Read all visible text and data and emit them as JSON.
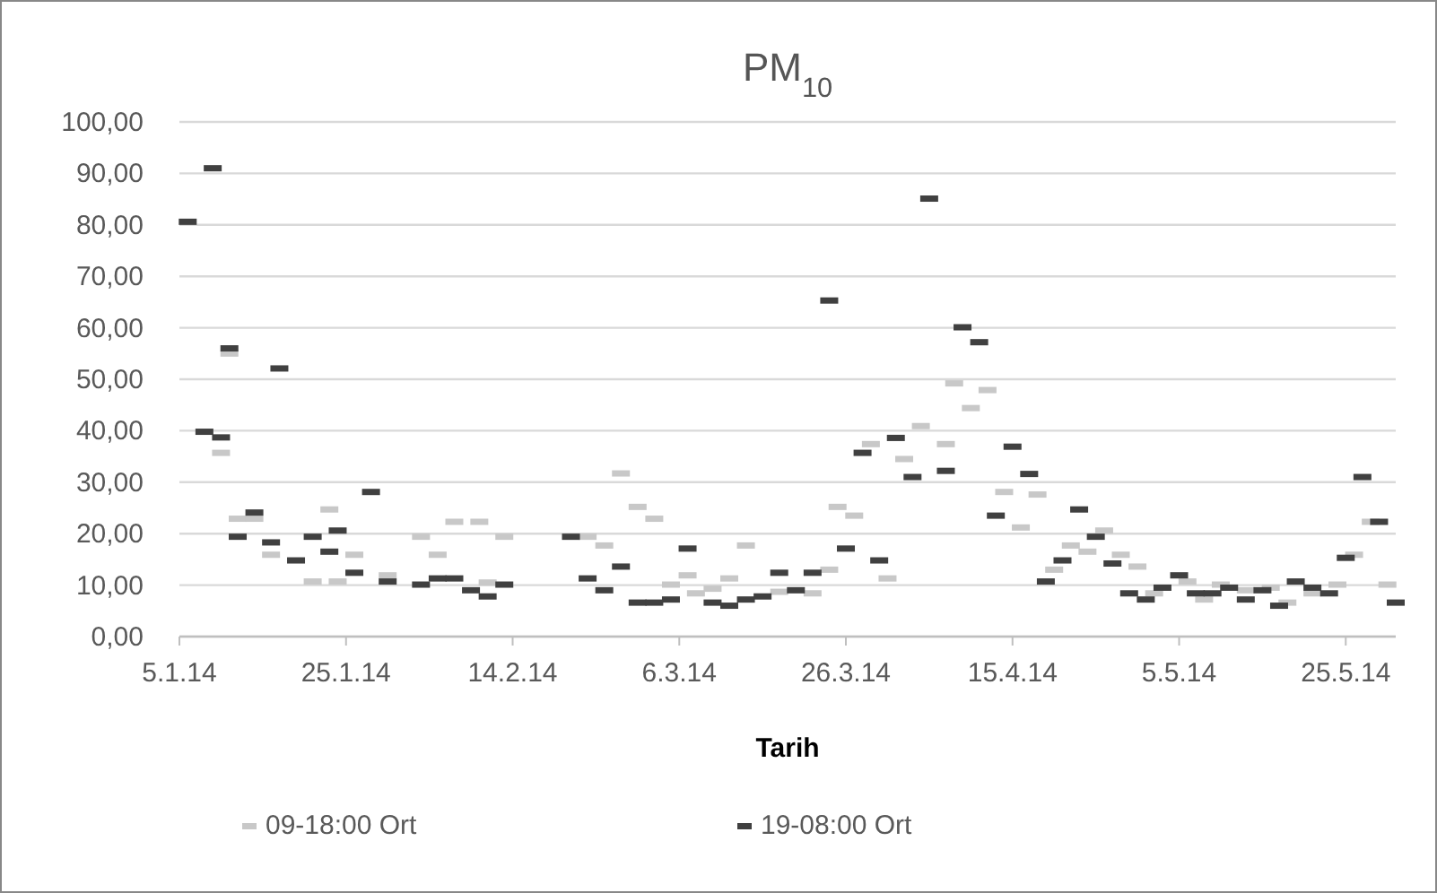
{
  "chart_data": {
    "type": "scatter",
    "title": "PM$_{10}$",
    "xlabel": "Tarih",
    "legend": "bottom",
    "grid": "y",
    "xlim": [
      "2014-01-05",
      "2014-05-31"
    ],
    "xticks": [
      {
        "value": "2014-01-05",
        "label": "5.1.14"
      },
      {
        "value": "2014-01-25",
        "label": "25.1.14"
      },
      {
        "value": "2014-02-14",
        "label": "14.2.14"
      },
      {
        "value": "2014-03-06",
        "label": "6.3.14"
      },
      {
        "value": "2014-03-26",
        "label": "26.3.14"
      },
      {
        "value": "2014-04-15",
        "label": "15.4.14"
      },
      {
        "value": "2014-05-05",
        "label": "5.5.14"
      },
      {
        "value": "2014-05-25",
        "label": "25.5.14"
      }
    ],
    "ylim": [
      0,
      100
    ],
    "yticks": [
      {
        "value": 0,
        "label": "0,00"
      },
      {
        "value": 10,
        "label": "10,00"
      },
      {
        "value": 20,
        "label": "20,00"
      },
      {
        "value": 30,
        "label": "30,00"
      },
      {
        "value": 40,
        "label": "40,00"
      },
      {
        "value": 50,
        "label": "50,00"
      },
      {
        "value": 60,
        "label": "60,00"
      },
      {
        "value": 70,
        "label": "70,00"
      },
      {
        "value": 80,
        "label": "80,00"
      },
      {
        "value": 90,
        "label": "90,00"
      },
      {
        "value": 100,
        "label": "100,00"
      }
    ],
    "series": [
      {
        "name": "09-18:00 Ort",
        "color": "#c8c8c8",
        "x": [
          "2014-01-10",
          "2014-01-11",
          "2014-01-12",
          "2014-01-14",
          "2014-01-16",
          "2014-01-21",
          "2014-01-23",
          "2014-01-24",
          "2014-01-26",
          "2014-01-30",
          "2014-02-03",
          "2014-02-05",
          "2014-02-07",
          "2014-02-10",
          "2014-02-11",
          "2014-02-13",
          "2014-02-23",
          "2014-02-25",
          "2014-02-27",
          "2014-03-01",
          "2014-03-03",
          "2014-03-05",
          "2014-03-07",
          "2014-03-08",
          "2014-03-10",
          "2014-03-12",
          "2014-03-14",
          "2014-03-18",
          "2014-03-22",
          "2014-03-24",
          "2014-03-25",
          "2014-03-27",
          "2014-03-29",
          "2014-03-31",
          "2014-04-02",
          "2014-04-04",
          "2014-04-07",
          "2014-04-08",
          "2014-04-10",
          "2014-04-12",
          "2014-04-14",
          "2014-04-16",
          "2014-04-18",
          "2014-04-20",
          "2014-04-22",
          "2014-04-24",
          "2014-04-26",
          "2014-04-28",
          "2014-04-30",
          "2014-05-02",
          "2014-05-06",
          "2014-05-08",
          "2014-05-10",
          "2014-05-13",
          "2014-05-16",
          "2014-05-18",
          "2014-05-21",
          "2014-05-24",
          "2014-05-26",
          "2014-05-28",
          "2014-05-30"
        ],
        "values": [
          35.7,
          55.0,
          22.9,
          22.9,
          15.9,
          10.7,
          24.7,
          10.7,
          15.9,
          11.9,
          19.4,
          15.9,
          22.3,
          22.3,
          10.5,
          19.4,
          19.4,
          17.7,
          31.7,
          25.2,
          22.9,
          10.1,
          11.9,
          8.4,
          9.3,
          11.3,
          17.7,
          8.7,
          8.4,
          13.0,
          25.2,
          23.5,
          37.4,
          11.3,
          34.5,
          40.9,
          37.4,
          49.2,
          44.4,
          47.9,
          28.1,
          21.2,
          27.6,
          13.0,
          17.7,
          16.5,
          20.6,
          15.9,
          13.6,
          8.4,
          10.7,
          7.2,
          10.1,
          9.0,
          9.5,
          6.6,
          8.4,
          10.1,
          15.9,
          22.3,
          10.1
        ]
      },
      {
        "name": "19-08:00 Ort",
        "color": "#404040",
        "x": [
          "2014-01-06",
          "2014-01-08",
          "2014-01-09",
          "2014-01-10",
          "2014-01-11",
          "2014-01-12",
          "2014-01-14",
          "2014-01-16",
          "2014-01-17",
          "2014-01-19",
          "2014-01-21",
          "2014-01-23",
          "2014-01-24",
          "2014-01-26",
          "2014-01-28",
          "2014-01-30",
          "2014-02-03",
          "2014-02-05",
          "2014-02-07",
          "2014-02-09",
          "2014-02-11",
          "2014-02-13",
          "2014-02-21",
          "2014-02-23",
          "2014-02-25",
          "2014-02-27",
          "2014-03-01",
          "2014-03-03",
          "2014-03-05",
          "2014-03-07",
          "2014-03-10",
          "2014-03-12",
          "2014-03-14",
          "2014-03-16",
          "2014-03-18",
          "2014-03-20",
          "2014-03-22",
          "2014-03-24",
          "2014-03-26",
          "2014-03-28",
          "2014-03-30",
          "2014-04-01",
          "2014-04-03",
          "2014-04-05",
          "2014-04-07",
          "2014-04-09",
          "2014-04-11",
          "2014-04-13",
          "2014-04-15",
          "2014-04-17",
          "2014-04-19",
          "2014-04-21",
          "2014-04-23",
          "2014-04-25",
          "2014-04-27",
          "2014-04-29",
          "2014-05-01",
          "2014-05-03",
          "2014-05-05",
          "2014-05-07",
          "2014-05-09",
          "2014-05-11",
          "2014-05-13",
          "2014-05-15",
          "2014-05-17",
          "2014-05-19",
          "2014-05-21",
          "2014-05-23",
          "2014-05-25",
          "2014-05-27",
          "2014-05-29",
          "2014-05-31"
        ],
        "values": [
          80.6,
          39.8,
          91.0,
          38.7,
          56.0,
          19.4,
          24.1,
          18.3,
          52.1,
          14.8,
          19.4,
          16.5,
          20.6,
          12.4,
          28.1,
          10.7,
          10.1,
          11.3,
          11.3,
          9.0,
          7.8,
          10.1,
          19.4,
          11.3,
          9.0,
          13.6,
          6.6,
          6.6,
          7.2,
          17.1,
          6.6,
          6.0,
          7.2,
          7.8,
          12.4,
          9.0,
          12.4,
          65.3,
          17.1,
          35.7,
          14.8,
          38.6,
          31.0,
          85.1,
          32.2,
          60.1,
          57.2,
          23.5,
          36.9,
          31.6,
          10.7,
          14.8,
          24.7,
          19.4,
          14.2,
          8.4,
          7.2,
          9.5,
          11.9,
          8.4,
          8.4,
          9.5,
          7.2,
          9.0,
          6.0,
          10.7,
          9.5,
          8.4,
          15.3,
          31.0,
          22.3,
          6.6
        ]
      }
    ]
  }
}
